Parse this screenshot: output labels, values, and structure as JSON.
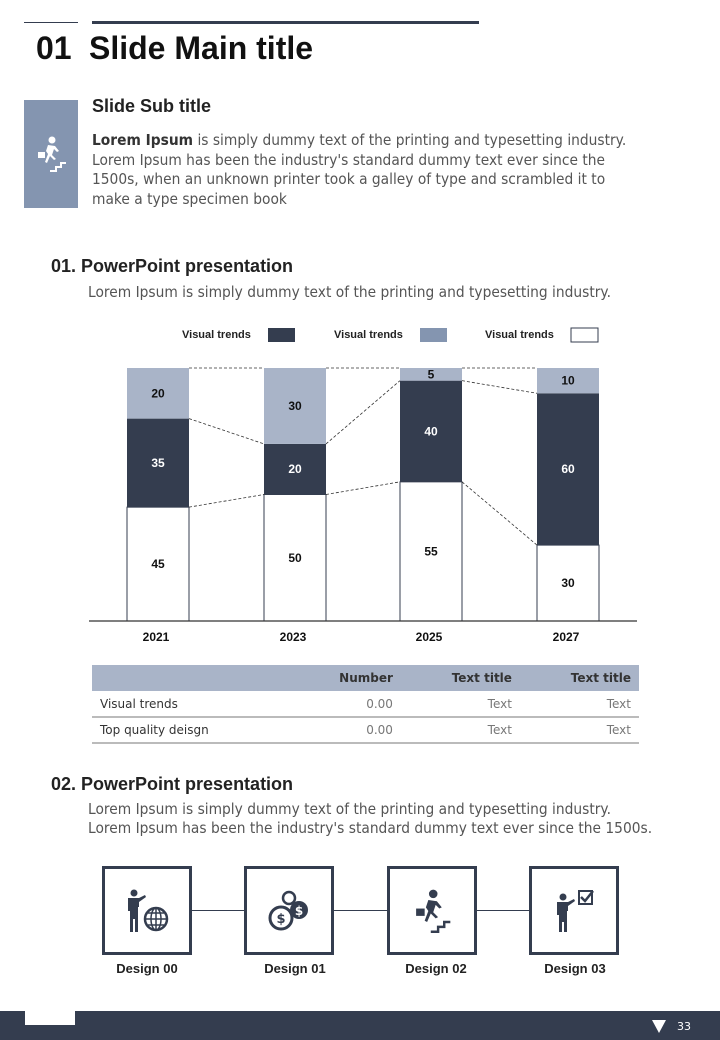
{
  "header": {
    "number": "01",
    "title": "Slide Main title",
    "subtitle": "Slide Sub title",
    "intro_bold": "Lorem Ipsum",
    "intro_rest": " is simply dummy text of the printing and typesetting industry.",
    "intro_lines": [
      "Lorem Ipsum has been the industry's standard dummy text ever since the",
      "1500s, when an unknown printer took a galley of type and scrambled it to",
      "make a type specimen book"
    ]
  },
  "section1": {
    "title": "01. PowerPoint presentation",
    "text": "Lorem Ipsum is simply dummy text of the printing and typesetting industry."
  },
  "chart_data": {
    "type": "bar",
    "stacked": true,
    "categories": [
      "2021",
      "2023",
      "2025",
      "2027"
    ],
    "series": [
      {
        "name": "Visual trends",
        "color": "#ffffff",
        "values": [
          45,
          50,
          55,
          30
        ]
      },
      {
        "name": "Visual trends",
        "color": "#343d4f",
        "values": [
          35,
          20,
          40,
          60
        ]
      },
      {
        "name": "Visual trends",
        "color": "#a9b4c8",
        "values": [
          20,
          30,
          5,
          10
        ]
      }
    ],
    "legend": [
      {
        "label": "Visual trends",
        "color": "#343d4f"
      },
      {
        "label": "Visual trends",
        "color": "#8495b0"
      },
      {
        "label": "Visual trends",
        "color": "#ffffff"
      }
    ],
    "ylim": [
      0,
      100
    ],
    "legend_position": "top"
  },
  "table": {
    "headers": [
      "",
      "Number",
      "Text title",
      "Text title"
    ],
    "rows": [
      [
        "Visual trends",
        "0.00",
        "Text",
        "Text"
      ],
      [
        "Top quality deisgn",
        "0.00",
        "Text",
        "Text"
      ]
    ]
  },
  "section2": {
    "title": "02. PowerPoint presentation",
    "lines": [
      "Lorem Ipsum is simply dummy text of the printing and typesetting industry.",
      "Lorem Ipsum has been the industry's standard dummy text ever since the 1500s."
    ]
  },
  "designs": [
    {
      "label": "Design 00",
      "icon": "businessman-globe-icon"
    },
    {
      "label": "Design 01",
      "icon": "coins-icon"
    },
    {
      "label": "Design 02",
      "icon": "stairs-climber-icon"
    },
    {
      "label": "Design 03",
      "icon": "businessman-checkbox-icon"
    }
  ],
  "footer": {
    "page": "33"
  },
  "colors": {
    "dark": "#343d4f",
    "accent": "#8495b0",
    "light": "#a9b4c8"
  }
}
